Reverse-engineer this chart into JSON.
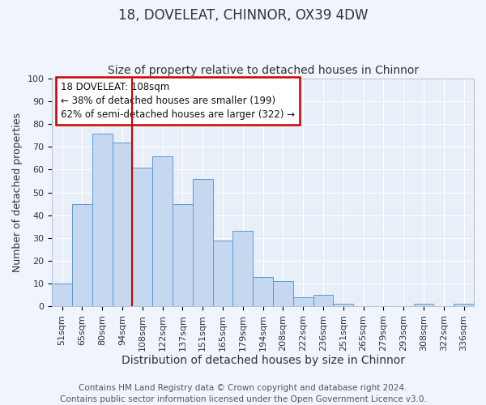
{
  "title": "18, DOVELEAT, CHINNOR, OX39 4DW",
  "subtitle": "Size of property relative to detached houses in Chinnor",
  "xlabel": "Distribution of detached houses by size in Chinnor",
  "ylabel": "Number of detached properties",
  "bar_labels": [
    "51sqm",
    "65sqm",
    "80sqm",
    "94sqm",
    "108sqm",
    "122sqm",
    "137sqm",
    "151sqm",
    "165sqm",
    "179sqm",
    "194sqm",
    "208sqm",
    "222sqm",
    "236sqm",
    "251sqm",
    "265sqm",
    "279sqm",
    "293sqm",
    "308sqm",
    "322sqm",
    "336sqm"
  ],
  "bar_values": [
    10,
    45,
    76,
    72,
    61,
    66,
    45,
    56,
    29,
    33,
    13,
    11,
    4,
    5,
    1,
    0,
    0,
    0,
    1,
    0,
    1
  ],
  "bar_color": "#c5d8f0",
  "bar_edge_color": "#5b9bd5",
  "vline_x_index": 4,
  "vline_color": "#cc0000",
  "ylim": [
    0,
    100
  ],
  "yticks": [
    0,
    10,
    20,
    30,
    40,
    50,
    60,
    70,
    80,
    90,
    100
  ],
  "annotation_title": "18 DOVELEAT: 108sqm",
  "annotation_line1": "← 38% of detached houses are smaller (199)",
  "annotation_line2": "62% of semi-detached houses are larger (322) →",
  "annotation_box_color": "#ffffff",
  "annotation_box_edge": "#cc0000",
  "footer_line1": "Contains HM Land Registry data © Crown copyright and database right 2024.",
  "footer_line2": "Contains public sector information licensed under the Open Government Licence v3.0.",
  "bg_color": "#f0f4fc",
  "plot_bg_color": "#e8eff9",
  "grid_color": "#ffffff",
  "title_fontsize": 12,
  "subtitle_fontsize": 10,
  "xlabel_fontsize": 10,
  "ylabel_fontsize": 9,
  "tick_fontsize": 8,
  "footer_fontsize": 7.5
}
